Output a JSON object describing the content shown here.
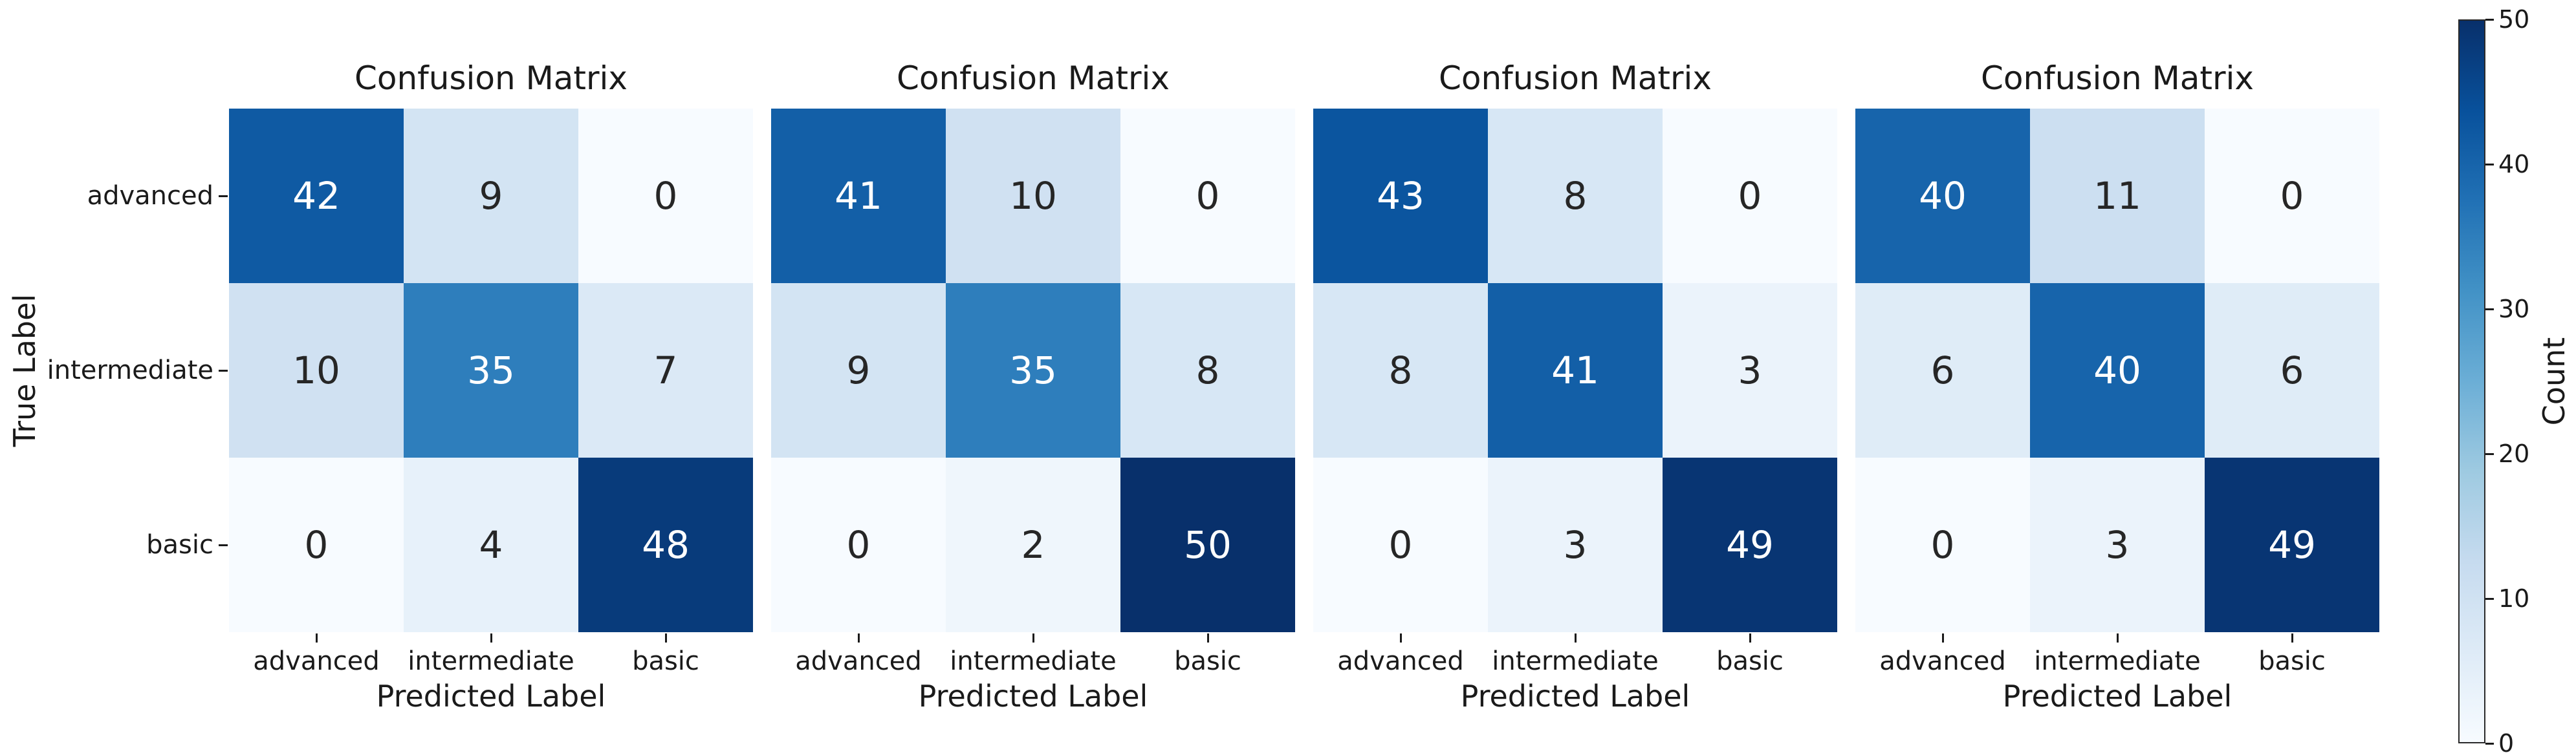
{
  "chart_data": {
    "type": "heatmap",
    "subplot_titles": [
      "Confusion Matrix",
      "Confusion Matrix",
      "Confusion Matrix",
      "Confusion Matrix"
    ],
    "x_categories": [
      "advanced",
      "intermediate",
      "basic"
    ],
    "y_categories": [
      "advanced",
      "intermediate",
      "basic"
    ],
    "xlabel": "Predicted Label",
    "ylabel": "True Label",
    "series": [
      {
        "name": "matrix-1",
        "values": [
          [
            42,
            9,
            0
          ],
          [
            10,
            35,
            7
          ],
          [
            0,
            4,
            48
          ]
        ]
      },
      {
        "name": "matrix-2",
        "values": [
          [
            41,
            10,
            0
          ],
          [
            9,
            35,
            8
          ],
          [
            0,
            2,
            50
          ]
        ]
      },
      {
        "name": "matrix-3",
        "values": [
          [
            43,
            8,
            0
          ],
          [
            8,
            41,
            3
          ],
          [
            0,
            3,
            49
          ]
        ]
      },
      {
        "name": "matrix-4",
        "values": [
          [
            40,
            11,
            0
          ],
          [
            6,
            40,
            6
          ],
          [
            0,
            3,
            49
          ]
        ]
      }
    ],
    "vmin": 0,
    "vmax": 50,
    "colormap": "Blues",
    "colorbar": {
      "label": "Count",
      "ticks": [
        0,
        10,
        20,
        30,
        40,
        50
      ]
    },
    "layout": {
      "grid": "1x4",
      "yticklabels_on_first_subplot_only": true,
      "colorbar_position": "right",
      "gridlines": false
    }
  },
  "colors": {
    "background": "#ffffff",
    "blues_anchors": [
      "#f7fbff",
      "#deebf7",
      "#c6dbef",
      "#9ecae1",
      "#6baed6",
      "#4292c6",
      "#2171b5",
      "#08519c",
      "#08306b"
    ],
    "cell_text_light": "#ffffff",
    "cell_text_dark": "#262626",
    "axis_text": "#1a1a1a",
    "colorbar_outline": "#2a2a2a"
  }
}
